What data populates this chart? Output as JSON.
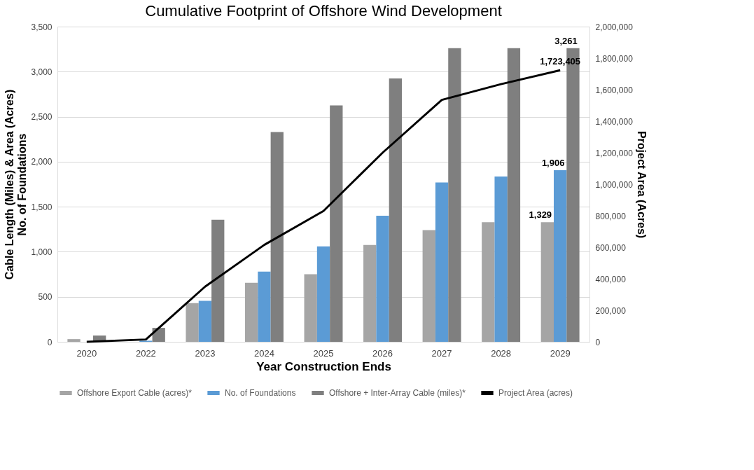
{
  "chart_data": {
    "type": "bar",
    "title": "Cumulative Footprint of Offshore Wind Development",
    "xlabel": "Year Construction Ends",
    "ylabel": "Cable Length (Miles) & Area (Acres)\nNo. of Foundations",
    "y2label": "Project Area (Acres)",
    "categories": [
      "2020",
      "2022",
      "2023",
      "2024",
      "2025",
      "2026",
      "2027",
      "2028",
      "2029"
    ],
    "series": [
      {
        "name": "Offshore Export Cable (acres)*",
        "color": "#a5a5a5",
        "values": [
          30,
          null,
          430,
          655,
          750,
          1075,
          1240,
          1329,
          1329
        ],
        "value_labels": [
          null,
          null,
          null,
          null,
          null,
          null,
          null,
          null,
          "1,329"
        ]
      },
      {
        "name": "No. of Foundations",
        "color": "#5b9bd5",
        "values": [
          null,
          12,
          455,
          780,
          1060,
          1400,
          1770,
          1835,
          1906
        ],
        "value_labels": [
          null,
          null,
          null,
          null,
          null,
          null,
          null,
          null,
          "1,906"
        ]
      },
      {
        "name": "Offshore + Inter-Array Cable (miles)*",
        "color": "#7f7f7f",
        "values": [
          70,
          155,
          1355,
          2330,
          2625,
          2925,
          3261,
          3261,
          3261
        ],
        "value_labels": [
          null,
          null,
          null,
          null,
          null,
          null,
          null,
          null,
          "3,261"
        ]
      },
      {
        "name": "Project Area (acres)",
        "type": "line",
        "axis": "y2",
        "color": "#000000",
        "values": [
          0,
          15000,
          350000,
          615000,
          830000,
          1200000,
          1535000,
          1635000,
          1723405
        ],
        "value_labels": [
          null,
          null,
          null,
          null,
          null,
          null,
          null,
          null,
          "1,723,405"
        ]
      }
    ],
    "ylim": [
      0,
      3500
    ],
    "yticks": [
      {
        "value": 0,
        "label": "0"
      },
      {
        "value": 500,
        "label": "500"
      },
      {
        "value": 1000,
        "label": "1,000"
      },
      {
        "value": 1500,
        "label": "1,500"
      },
      {
        "value": 2000,
        "label": "2,000"
      },
      {
        "value": 2500,
        "label": "2,500"
      },
      {
        "value": 3000,
        "label": "3,000"
      },
      {
        "value": 3500,
        "label": "3,500"
      }
    ],
    "y2lim": [
      0,
      2000000
    ],
    "y2ticks": [
      {
        "value": 0,
        "label": "0"
      },
      {
        "value": 200000,
        "label": "200,000"
      },
      {
        "value": 400000,
        "label": "400,000"
      },
      {
        "value": 600000,
        "label": "600,000"
      },
      {
        "value": 800000,
        "label": "800,000"
      },
      {
        "value": 1000000,
        "label": "1,000,000"
      },
      {
        "value": 1200000,
        "label": "1,200,000"
      },
      {
        "value": 1400000,
        "label": "1,400,000"
      },
      {
        "value": 1600000,
        "label": "1,600,000"
      },
      {
        "value": 1800000,
        "label": "1,800,000"
      },
      {
        "value": 2000000,
        "label": "2,000,000"
      }
    ],
    "grid": "y",
    "legend": "bottom"
  }
}
